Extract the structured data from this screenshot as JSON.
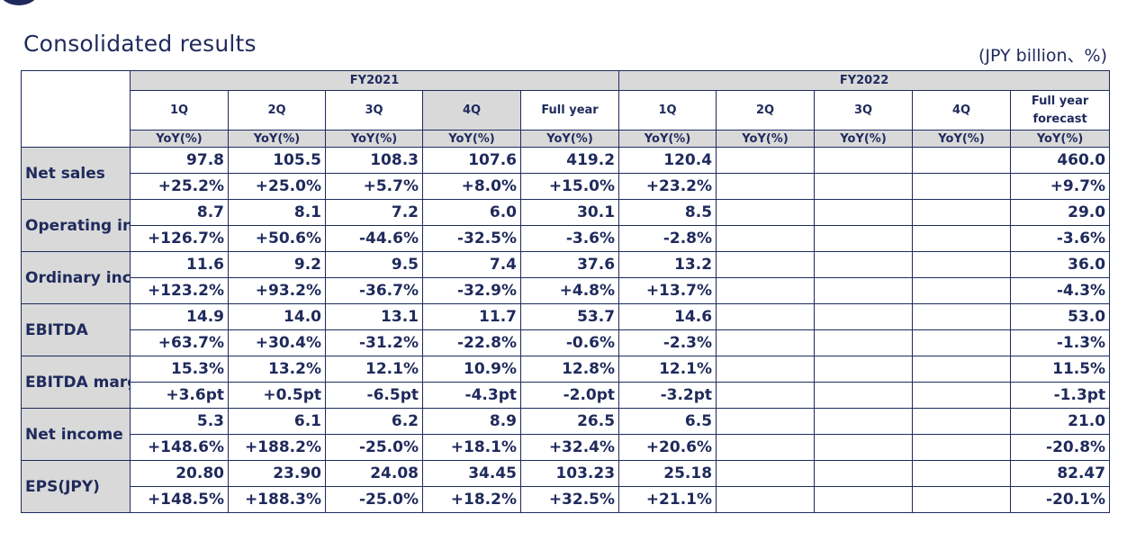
{
  "title": "Consolidated results",
  "unit": "(JPY billion、%)",
  "fiscal_years": [
    "FY2021",
    "FY2022"
  ],
  "columns": [
    "1Q",
    "2Q",
    "3Q",
    "4Q",
    "Full year",
    "1Q",
    "2Q",
    "3Q",
    "4Q",
    "Full year forecast"
  ],
  "yoy_header": "YoY(%)",
  "rows": [
    {
      "label": "Net sales",
      "values": [
        "97.8",
        "105.5",
        "108.3",
        "107.6",
        "419.2",
        "120.4",
        "",
        "",
        "",
        "460.0"
      ],
      "yoy": [
        "+25.2%",
        "+25.0%",
        "+5.7%",
        "+8.0%",
        "+15.0%",
        "+23.2%",
        "",
        "",
        "",
        "+9.7%"
      ]
    },
    {
      "label": "Operating income",
      "values": [
        "8.7",
        "8.1",
        "7.2",
        "6.0",
        "30.1",
        "8.5",
        "",
        "",
        "",
        "29.0"
      ],
      "yoy": [
        "+126.7%",
        "+50.6%",
        "-44.6%",
        "-32.5%",
        "-3.6%",
        "-2.8%",
        "",
        "",
        "",
        "-3.6%"
      ]
    },
    {
      "label": "Ordinary income",
      "values": [
        "11.6",
        "9.2",
        "9.5",
        "7.4",
        "37.6",
        "13.2",
        "",
        "",
        "",
        "36.0"
      ],
      "yoy": [
        "+123.2%",
        "+93.2%",
        "-36.7%",
        "-32.9%",
        "+4.8%",
        "+13.7%",
        "",
        "",
        "",
        "-4.3%"
      ]
    },
    {
      "label": "EBITDA",
      "values": [
        "14.9",
        "14.0",
        "13.1",
        "11.7",
        "53.7",
        "14.6",
        "",
        "",
        "",
        "53.0"
      ],
      "yoy": [
        "+63.7%",
        "+30.4%",
        "-31.2%",
        "-22.8%",
        "-0.6%",
        "-2.3%",
        "",
        "",
        "",
        "-1.3%"
      ]
    },
    {
      "label": "EBITDA margin",
      "values": [
        "15.3%",
        "13.2%",
        "12.1%",
        "10.9%",
        "12.8%",
        "12.1%",
        "",
        "",
        "",
        "11.5%"
      ],
      "yoy": [
        "+3.6pt",
        "+0.5pt",
        "-6.5pt",
        "-4.3pt",
        "-2.0pt",
        "-3.2pt",
        "",
        "",
        "",
        "-1.3pt"
      ]
    },
    {
      "label": "Net income",
      "values": [
        "5.3",
        "6.1",
        "6.2",
        "8.9",
        "26.5",
        "6.5",
        "",
        "",
        "",
        "21.0"
      ],
      "yoy": [
        "+148.6%",
        "+188.2%",
        "-25.0%",
        "+18.1%",
        "+32.4%",
        "+20.6%",
        "",
        "",
        "",
        "-20.8%"
      ]
    },
    {
      "label": "EPS(JPY)",
      "values": [
        "20.80",
        "23.90",
        "24.08",
        "34.45",
        "103.23",
        "25.18",
        "",
        "",
        "",
        "82.47"
      ],
      "yoy": [
        "+148.5%",
        "+188.3%",
        "-25.0%",
        "+18.2%",
        "+32.5%",
        "+21.1%",
        "",
        "",
        "",
        "-20.1%"
      ]
    }
  ]
}
